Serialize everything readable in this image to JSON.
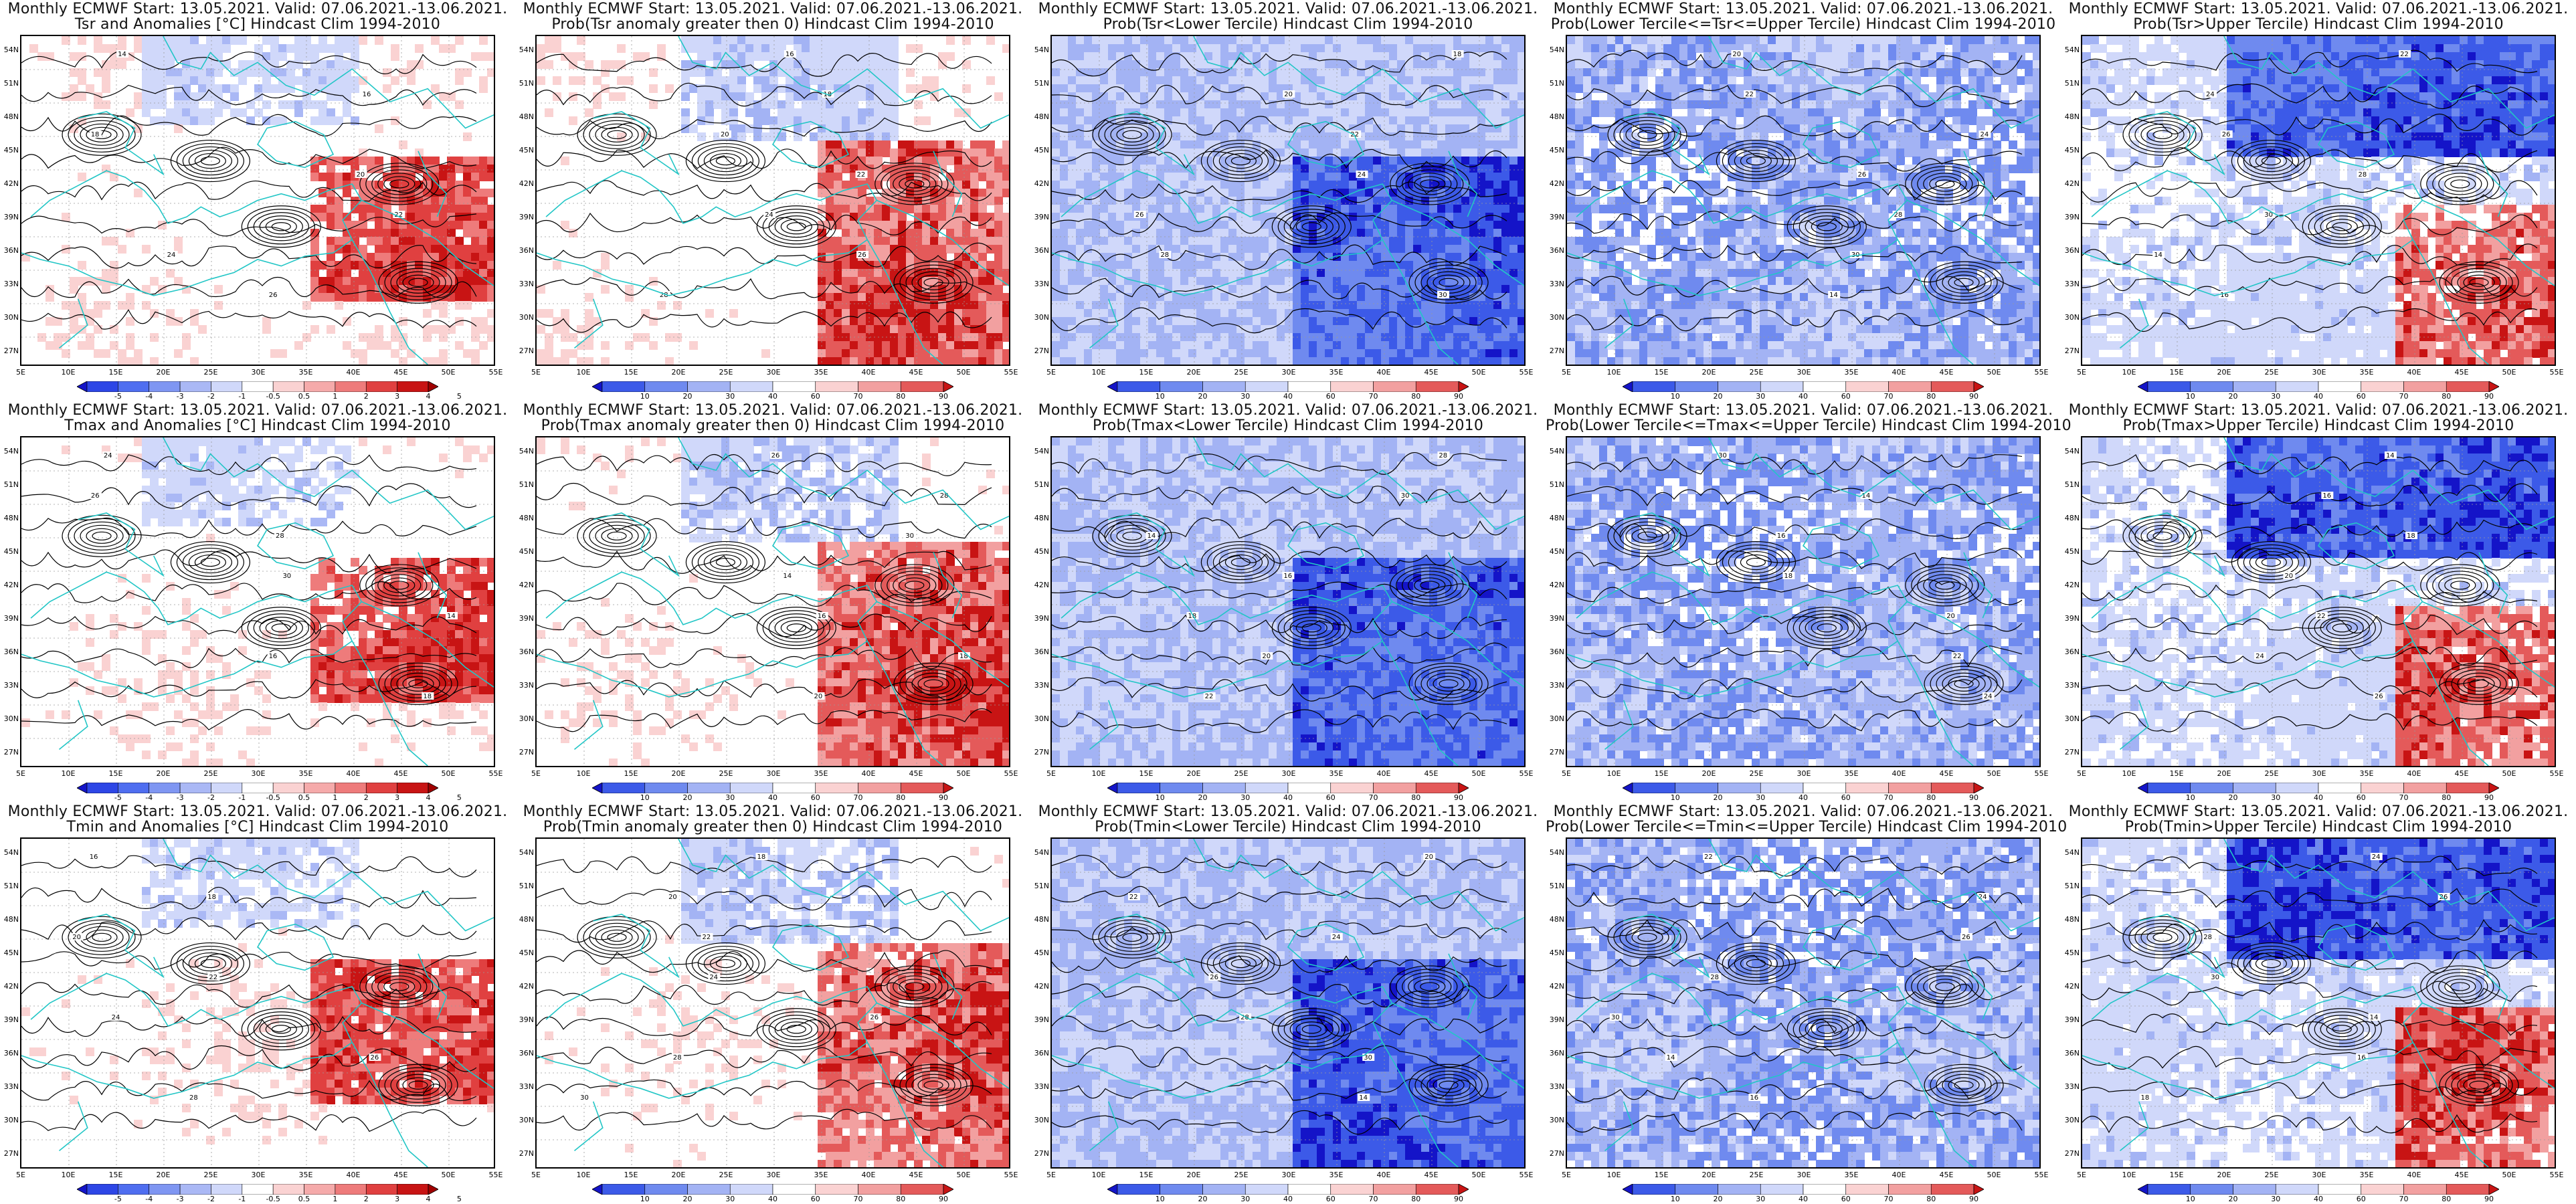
{
  "header_line": "Monthly ECMWF Start: 13.05.2021. Valid: 07.06.2021.-13.06.2021.",
  "lat_labels": [
    "54N",
    "51N",
    "48N",
    "45N",
    "42N",
    "39N",
    "36N",
    "33N",
    "30N",
    "27N"
  ],
  "lon_labels": [
    "5E",
    "10E",
    "15E",
    "20E",
    "25E",
    "30E",
    "35E",
    "40E",
    "45E",
    "50E",
    "55E"
  ],
  "colorbars": {
    "anomaly": {
      "ticks": [
        "-5",
        "-4",
        "-3",
        "-2",
        "-1",
        "-0.5",
        "0.5",
        "1",
        "2",
        "3",
        "4",
        "5"
      ],
      "colors": [
        "#1414c8",
        "#2d46e6",
        "#4f6ef0",
        "#7f96f2",
        "#aab8f5",
        "#d0d8fa",
        "#ffffff",
        "#fad2d2",
        "#f5aaaa",
        "#ee7b7b",
        "#e04040",
        "#c81414",
        "#a00000"
      ]
    },
    "probability": {
      "ticks": [
        "10",
        "20",
        "30",
        "40",
        "60",
        "70",
        "80",
        "90"
      ],
      "colors": [
        "#1414c8",
        "#3c5ae8",
        "#6f8aef",
        "#a3b3f4",
        "#d0d8fa",
        "#ffffff",
        "#fad2d2",
        "#f2a0a0",
        "#e45a5a",
        "#c81414"
      ]
    }
  },
  "panels": [
    {
      "subtitle": "Tsr and Anomalies [°C] Hindcast Clim 1994-2010",
      "type": "anomaly",
      "cbar": "anomaly"
    },
    {
      "subtitle": "Prob(Tsr anomaly greater then 0) Hindcast Clim 1994-2010",
      "type": "above0",
      "cbar": "probability"
    },
    {
      "subtitle": "Prob(Tsr<Lower Tercile) Hindcast Clim 1994-2010",
      "type": "lower",
      "cbar": "probability"
    },
    {
      "subtitle": "Prob(Lower Tercile<=Tsr<=Upper Tercile) Hindcast Clim 1994-2010",
      "type": "middle",
      "cbar": "probability"
    },
    {
      "subtitle": "Prob(Tsr>Upper Tercile) Hindcast Clim 1994-2010",
      "type": "upper",
      "cbar": "probability"
    },
    {
      "subtitle": "Tmax and Anomalies [°C] Hindcast Clim 1994-2010",
      "type": "anomaly",
      "cbar": "anomaly"
    },
    {
      "subtitle": "Prob(Tmax anomaly greater then 0) Hindcast Clim 1994-2010",
      "type": "above0",
      "cbar": "probability"
    },
    {
      "subtitle": "Prob(Tmax<Lower Tercile) Hindcast Clim 1994-2010",
      "type": "lower",
      "cbar": "probability"
    },
    {
      "subtitle": "Prob(Lower Tercile<=Tmax<=Upper Tercile) Hindcast Clim 1994-2010",
      "type": "middle",
      "cbar": "probability"
    },
    {
      "subtitle": "Prob(Tmax>Upper Tercile) Hindcast Clim 1994-2010",
      "type": "upper",
      "cbar": "probability"
    },
    {
      "subtitle": "Tmin and Anomalies [°C] Hindcast Clim 1994-2010",
      "type": "anomaly",
      "cbar": "anomaly"
    },
    {
      "subtitle": "Prob(Tmin anomaly greater then 0) Hindcast Clim 1994-2010",
      "type": "above0",
      "cbar": "probability"
    },
    {
      "subtitle": "Prob(Tmin<Lower Tercile) Hindcast Clim 1994-2010",
      "type": "lower",
      "cbar": "probability"
    },
    {
      "subtitle": "Prob(Lower Tercile<=Tmin<=Upper Tercile) Hindcast Clim 1994-2010",
      "type": "middle",
      "cbar": "probability"
    },
    {
      "subtitle": "Prob(Tmin>Upper Tercile) Hindcast Clim 1994-2010",
      "type": "upper",
      "cbar": "probability"
    }
  ],
  "contour_labels": [
    "14",
    "16",
    "18",
    "20",
    "22",
    "24",
    "26",
    "28",
    "30"
  ],
  "colors": {
    "coastline": "#22c6c6",
    "contour": "#000000",
    "frame": "#000000"
  }
}
